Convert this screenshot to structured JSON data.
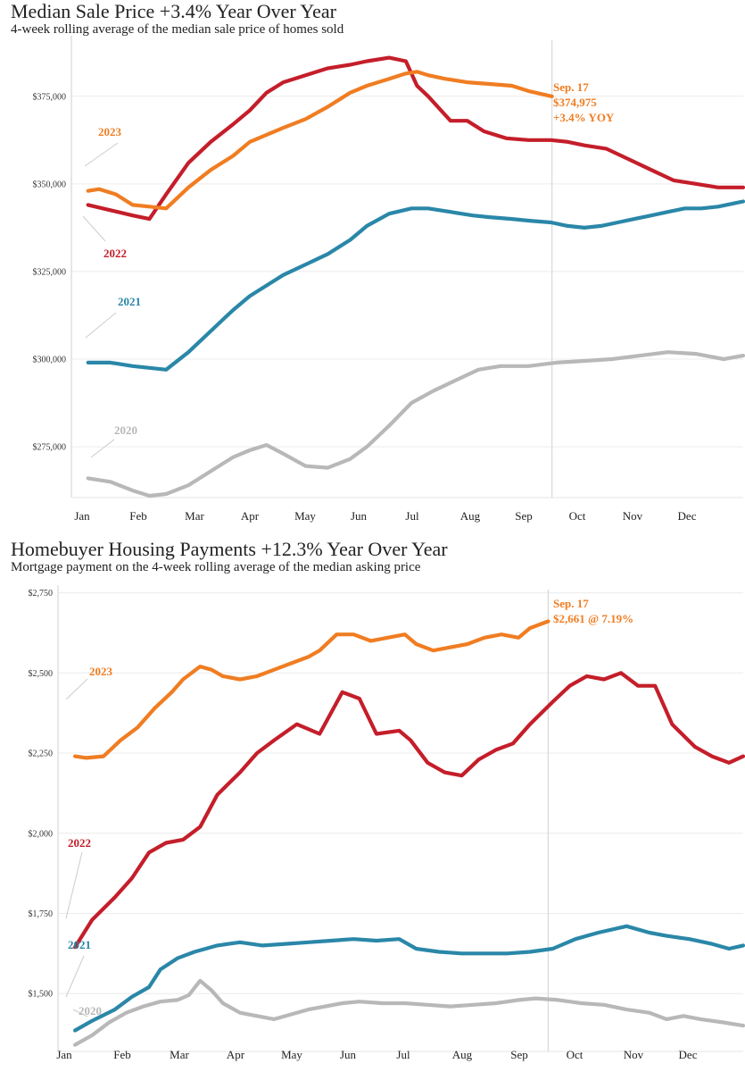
{
  "chart_data": [
    {
      "type": "line",
      "title": "Median Sale Price +3.4% Year Over Year",
      "subtitle": "4-week rolling average of the median sale price of homes sold",
      "categories": [
        "Jan",
        "Feb",
        "Mar",
        "Apr",
        "May",
        "Jun",
        "Jul",
        "Aug",
        "Sep",
        "Oct",
        "Nov",
        "Dec"
      ],
      "y_ticks": [
        "$275,000",
        "$300,000",
        "$325,000",
        "$350,000",
        "$375,000"
      ],
      "y_tick_values": [
        275000,
        300000,
        325000,
        350000,
        375000
      ],
      "ylim": [
        261000,
        391000
      ],
      "xlim": [
        0.8,
        12.85
      ],
      "grid": true,
      "reference_line_x": 9.42,
      "series": [
        {
          "name": "2020",
          "color": "#b8b8b8",
          "x": [
            1.1,
            1.5,
            1.9,
            2.2,
            2.5,
            2.9,
            3.3,
            3.7,
            4.0,
            4.3,
            4.6,
            5.0,
            5.4,
            5.8,
            6.1,
            6.5,
            6.9,
            7.3,
            7.7,
            8.1,
            8.5,
            9.0,
            9.5,
            10.0,
            10.5,
            11.0,
            11.5,
            12.0,
            12.5,
            12.85
          ],
          "y": [
            266000,
            265000,
            262500,
            261000,
            261500,
            264000,
            268000,
            272000,
            274000,
            275500,
            273000,
            269500,
            269000,
            271500,
            275000,
            281000,
            287500,
            291000,
            294000,
            297000,
            298000,
            298000,
            299000,
            299500,
            300000,
            301000,
            302000,
            301500,
            300000,
            301000
          ]
        },
        {
          "name": "2021",
          "color": "#2a87a8",
          "x": [
            1.1,
            1.5,
            1.9,
            2.2,
            2.5,
            2.9,
            3.3,
            3.7,
            4.0,
            4.3,
            4.6,
            5.0,
            5.4,
            5.8,
            6.1,
            6.5,
            6.9,
            7.2,
            7.6,
            8.0,
            8.3,
            8.7,
            9.0,
            9.4,
            9.7,
            10.0,
            10.3,
            10.6,
            10.9,
            11.2,
            11.5,
            11.8,
            12.1,
            12.4,
            12.7,
            12.85
          ],
          "y": [
            299000,
            299000,
            298000,
            297500,
            297000,
            302000,
            308000,
            314000,
            318000,
            321000,
            324000,
            327000,
            330000,
            334000,
            338000,
            341500,
            343000,
            343000,
            342000,
            341000,
            340500,
            340000,
            339500,
            339000,
            338000,
            337500,
            338000,
            339000,
            340000,
            341000,
            342000,
            343000,
            343000,
            343500,
            344500,
            345000
          ]
        },
        {
          "name": "2022",
          "color": "#c41e2a",
          "x": [
            1.1,
            1.5,
            1.9,
            2.2,
            2.5,
            2.9,
            3.3,
            3.7,
            4.0,
            4.3,
            4.6,
            5.0,
            5.4,
            5.8,
            6.1,
            6.5,
            6.8,
            7.0,
            7.2,
            7.6,
            7.9,
            8.2,
            8.6,
            9.0,
            9.4,
            9.7,
            10.0,
            10.4,
            10.8,
            11.2,
            11.6,
            12.0,
            12.4,
            12.85
          ],
          "y": [
            344000,
            342500,
            341000,
            340000,
            347000,
            356000,
            362000,
            367000,
            371000,
            376000,
            379000,
            381000,
            383000,
            384000,
            385000,
            386000,
            385000,
            378000,
            375000,
            368000,
            368000,
            365000,
            363000,
            362500,
            362500,
            362000,
            361000,
            360000,
            357000,
            354000,
            351000,
            350000,
            349000,
            349000
          ]
        },
        {
          "name": "2023",
          "color": "#f07d22",
          "x": [
            1.1,
            1.3,
            1.6,
            1.9,
            2.2,
            2.5,
            2.9,
            3.3,
            3.7,
            4.0,
            4.3,
            4.6,
            5.0,
            5.4,
            5.8,
            6.1,
            6.5,
            6.8,
            7.0,
            7.2,
            7.5,
            7.9,
            8.3,
            8.7,
            9.0,
            9.42
          ],
          "y": [
            348000,
            348500,
            347000,
            344000,
            343500,
            343000,
            349000,
            354000,
            358000,
            362000,
            364000,
            366000,
            368500,
            372000,
            376000,
            378000,
            380000,
            381500,
            382000,
            381000,
            380000,
            379000,
            378500,
            378000,
            376500,
            374975
          ]
        }
      ],
      "annotation": {
        "lines": [
          "Sep. 17",
          "$374,975",
          "+3.4% YOY"
        ],
        "color": "#f07d22"
      },
      "series_labels": [
        "2023",
        "2022",
        "2021",
        "2020"
      ]
    },
    {
      "type": "line",
      "title": "Homebuyer Housing Payments +12.3% Year Over Year",
      "subtitle": "Mortgage payment on the 4-week rolling average of the median asking price",
      "categories": [
        "Jan",
        "Feb",
        "Mar",
        "Apr",
        "May",
        "Jun",
        "Jul",
        "Aug",
        "Sep",
        "Oct",
        "Nov",
        "Dec"
      ],
      "y_ticks": [
        "$1,500",
        "$1,750",
        "$2,000",
        "$2,250",
        "$2,500",
        "$2,750"
      ],
      "y_tick_values": [
        1500,
        1750,
        2000,
        2250,
        2500,
        2750
      ],
      "ylim": [
        1325,
        2760
      ],
      "xlim": [
        0.8,
        12.85
      ],
      "grid": true,
      "reference_line_x": 9.42,
      "series": [
        {
          "name": "2020",
          "color": "#b8b8b8",
          "x": [
            1.1,
            1.4,
            1.7,
            2.0,
            2.3,
            2.6,
            2.9,
            3.1,
            3.3,
            3.5,
            3.7,
            4.0,
            4.3,
            4.6,
            4.9,
            5.2,
            5.5,
            5.8,
            6.1,
            6.5,
            6.9,
            7.3,
            7.7,
            8.1,
            8.5,
            8.9,
            9.2,
            9.6,
            10.0,
            10.4,
            10.8,
            11.2,
            11.5,
            11.8,
            12.1,
            12.5,
            12.85
          ],
          "y": [
            1340,
            1370,
            1410,
            1440,
            1460,
            1475,
            1480,
            1495,
            1540,
            1510,
            1470,
            1440,
            1430,
            1420,
            1435,
            1450,
            1460,
            1470,
            1475,
            1470,
            1470,
            1465,
            1460,
            1465,
            1470,
            1480,
            1485,
            1480,
            1470,
            1465,
            1450,
            1440,
            1420,
            1430,
            1420,
            1410,
            1400
          ]
        },
        {
          "name": "2021",
          "color": "#2a87a8",
          "x": [
            1.1,
            1.4,
            1.8,
            2.1,
            2.4,
            2.6,
            2.9,
            3.2,
            3.6,
            4.0,
            4.4,
            4.8,
            5.2,
            5.6,
            6.0,
            6.4,
            6.8,
            7.1,
            7.5,
            7.9,
            8.3,
            8.7,
            9.1,
            9.5,
            9.9,
            10.3,
            10.8,
            11.2,
            11.5,
            11.9,
            12.3,
            12.6,
            12.85
          ],
          "y": [
            1385,
            1415,
            1450,
            1490,
            1520,
            1575,
            1610,
            1630,
            1650,
            1660,
            1650,
            1655,
            1660,
            1665,
            1670,
            1665,
            1670,
            1640,
            1630,
            1625,
            1625,
            1625,
            1630,
            1640,
            1670,
            1690,
            1710,
            1690,
            1680,
            1670,
            1655,
            1640,
            1650
          ]
        },
        {
          "name": "2022",
          "color": "#c41e2a",
          "x": [
            1.1,
            1.4,
            1.8,
            2.1,
            2.4,
            2.7,
            3.0,
            3.3,
            3.6,
            4.0,
            4.3,
            4.6,
            5.0,
            5.4,
            5.8,
            6.1,
            6.4,
            6.8,
            7.0,
            7.3,
            7.6,
            7.9,
            8.2,
            8.5,
            8.8,
            9.1,
            9.5,
            9.8,
            10.1,
            10.4,
            10.7,
            11.0,
            11.3,
            11.6,
            12.0,
            12.3,
            12.6,
            12.85
          ],
          "y": [
            1645,
            1730,
            1800,
            1860,
            1940,
            1970,
            1980,
            2020,
            2120,
            2190,
            2250,
            2290,
            2340,
            2310,
            2440,
            2420,
            2310,
            2320,
            2290,
            2220,
            2190,
            2180,
            2230,
            2260,
            2280,
            2340,
            2410,
            2460,
            2490,
            2480,
            2500,
            2460,
            2460,
            2340,
            2270,
            2240,
            2220,
            2240
          ]
        },
        {
          "name": "2023",
          "color": "#f07d22",
          "x": [
            1.1,
            1.3,
            1.6,
            1.9,
            2.2,
            2.5,
            2.8,
            3.0,
            3.3,
            3.5,
            3.7,
            4.0,
            4.3,
            4.6,
            4.9,
            5.2,
            5.4,
            5.7,
            6.0,
            6.3,
            6.6,
            6.9,
            7.1,
            7.4,
            7.7,
            8.0,
            8.3,
            8.6,
            8.9,
            9.1,
            9.42
          ],
          "y": [
            2240,
            2235,
            2240,
            2290,
            2330,
            2390,
            2440,
            2480,
            2520,
            2510,
            2490,
            2480,
            2490,
            2510,
            2530,
            2550,
            2570,
            2620,
            2620,
            2600,
            2610,
            2620,
            2590,
            2570,
            2580,
            2590,
            2610,
            2620,
            2610,
            2640,
            2661
          ]
        }
      ],
      "annotation": {
        "lines": [
          "Sep. 17",
          "$2,661 @ 7.19%"
        ],
        "color": "#f07d22"
      },
      "series_labels": [
        "2023",
        "2022",
        "2021",
        "2020"
      ]
    }
  ]
}
